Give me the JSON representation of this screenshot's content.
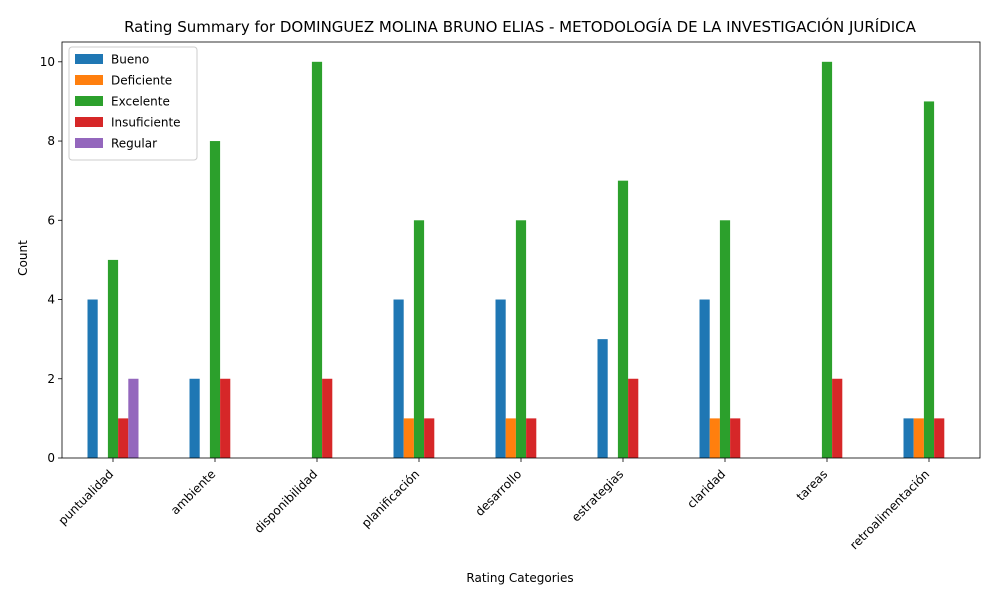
{
  "chart_data": {
    "type": "bar",
    "title": "Rating Summary for DOMINGUEZ MOLINA BRUNO ELIAS - METODOLOGÍA DE LA INVESTIGACIÓN JURÍDICA",
    "xlabel": "Rating Categories",
    "ylabel": "Count",
    "categories": [
      "puntualidad",
      "ambiente",
      "disponibilidad",
      "planificación",
      "desarrollo",
      "estrategias",
      "claridad",
      "tareas",
      "retroalimentación"
    ],
    "ylim": [
      0,
      10.5
    ],
    "yticks": [
      0,
      2,
      4,
      6,
      8,
      10
    ],
    "legend_position": "top-left",
    "grid": false,
    "series": [
      {
        "name": "Bueno",
        "color": "#1f77b4",
        "values": [
          4,
          2,
          0,
          4,
          4,
          3,
          4,
          0,
          1
        ]
      },
      {
        "name": "Deficiente",
        "color": "#ff7f0e",
        "values": [
          0,
          0,
          0,
          1,
          1,
          0,
          1,
          0,
          1
        ]
      },
      {
        "name": "Excelente",
        "color": "#2ca02c",
        "values": [
          5,
          8,
          10,
          6,
          6,
          7,
          6,
          10,
          9
        ]
      },
      {
        "name": "Insuficiente",
        "color": "#d62728",
        "values": [
          1,
          2,
          2,
          1,
          1,
          2,
          1,
          2,
          1
        ]
      },
      {
        "name": "Regular",
        "color": "#9467bd",
        "values": [
          2,
          0,
          0,
          0,
          0,
          0,
          0,
          0,
          0
        ]
      }
    ]
  }
}
